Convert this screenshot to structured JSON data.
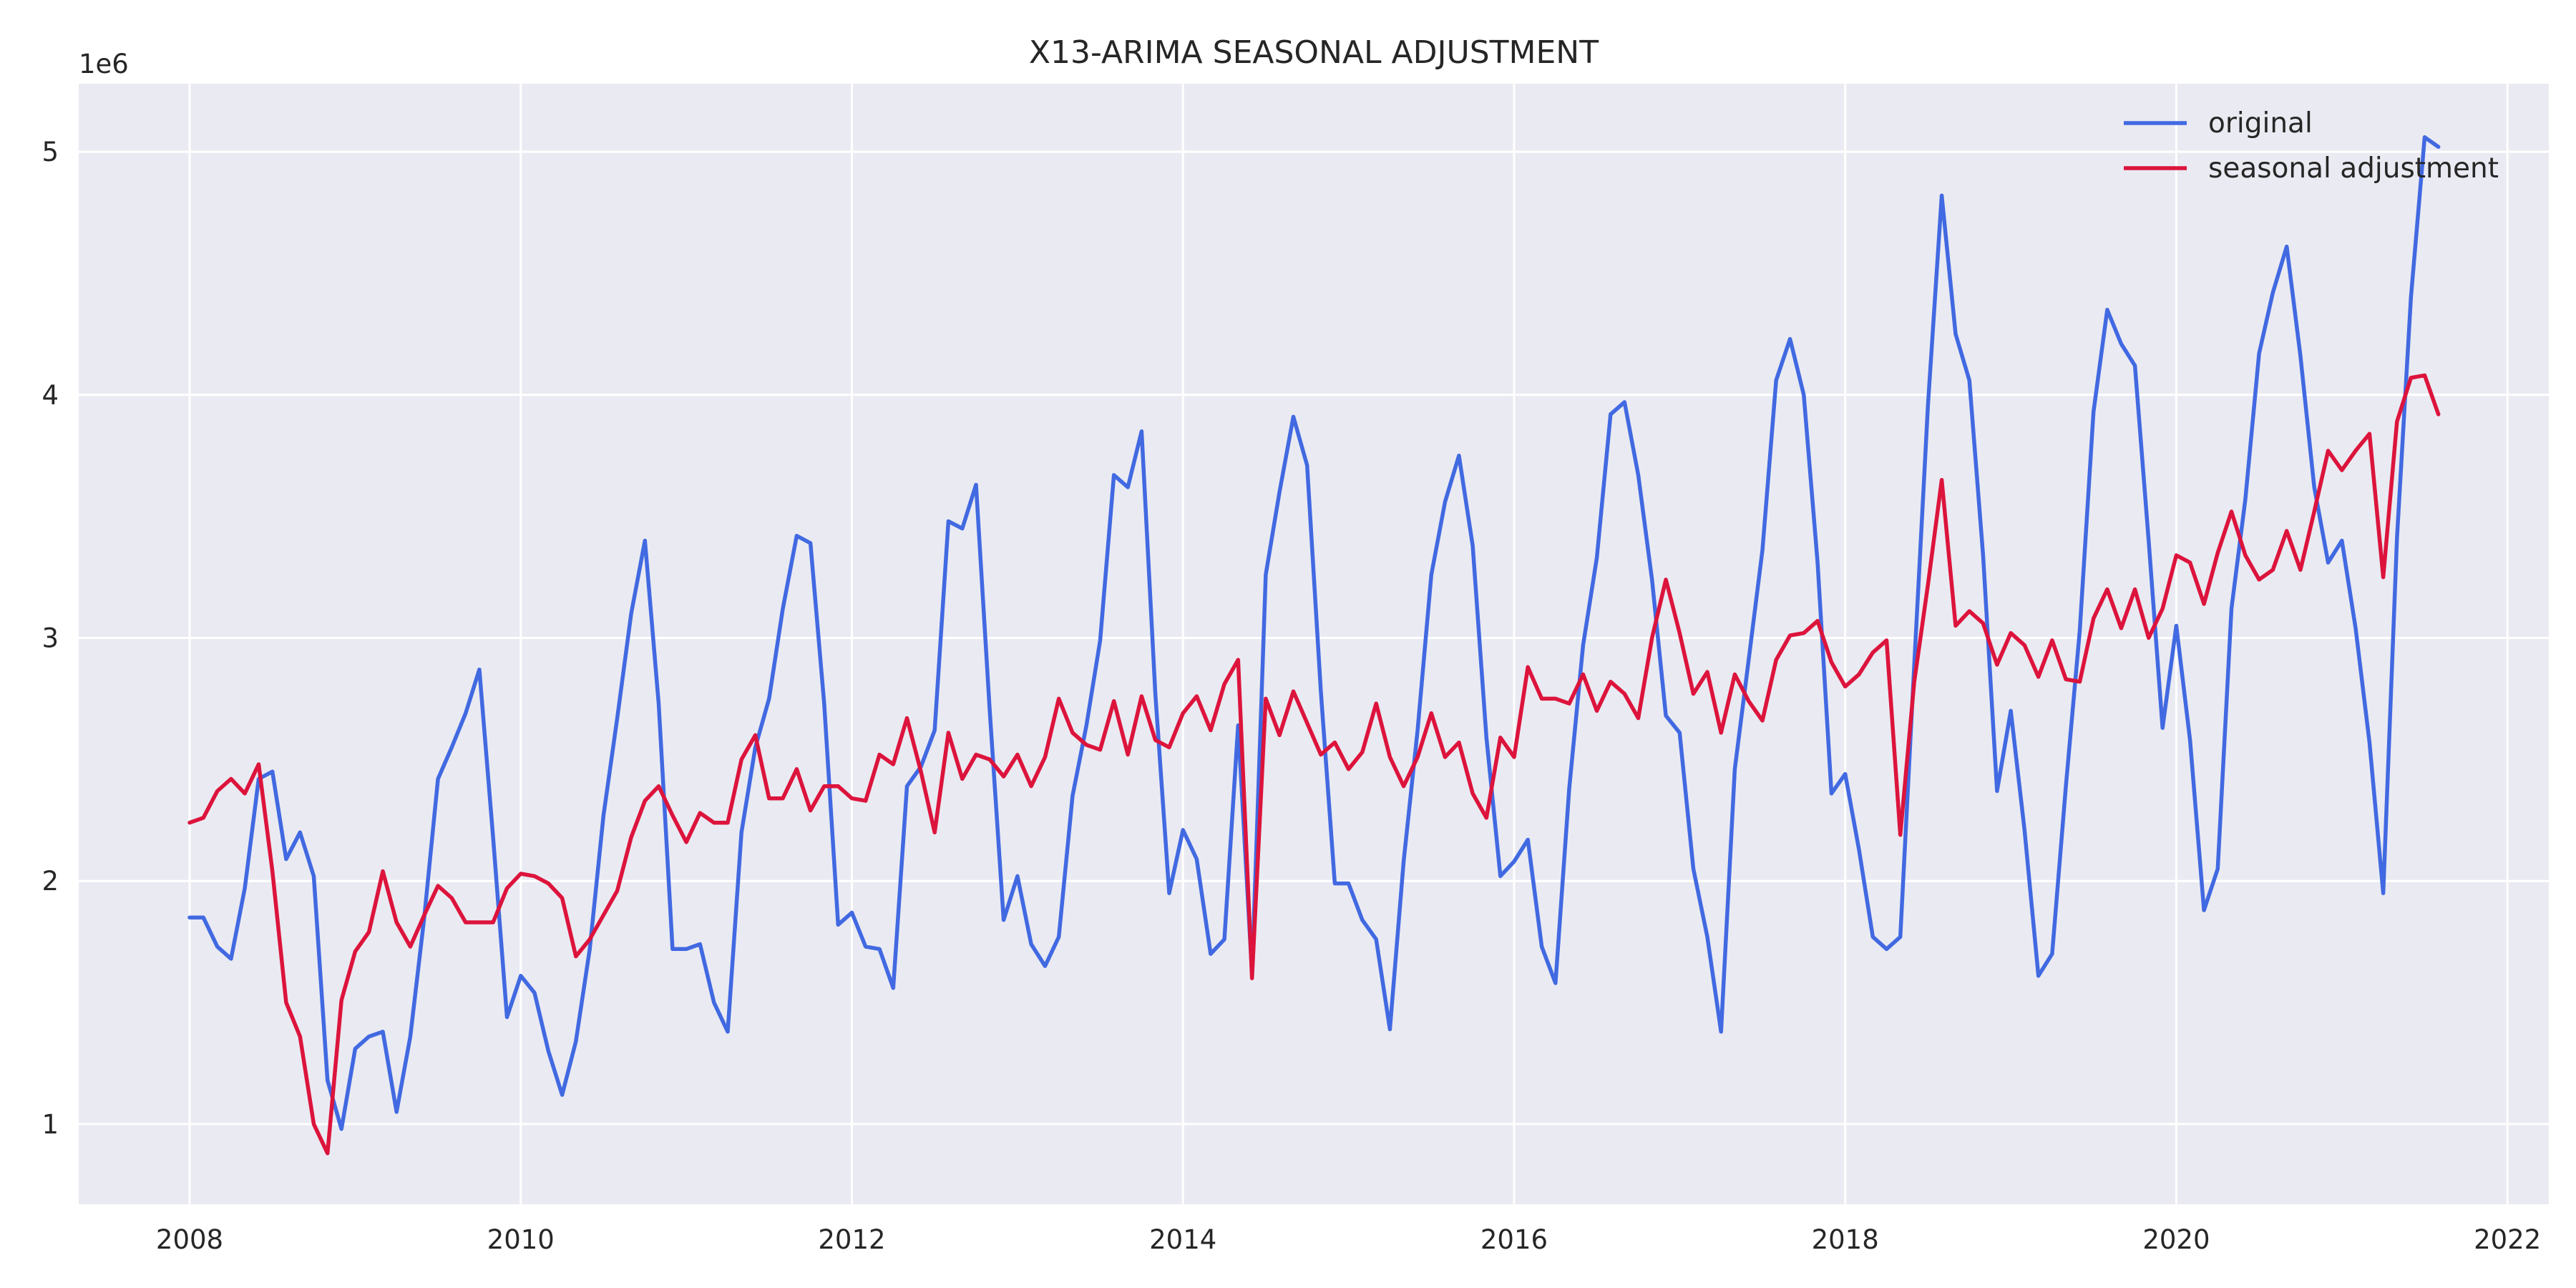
{
  "chart_data": {
    "type": "line",
    "title": "X13-ARIMA SEASONAL ADJUSTMENT",
    "xlabel": "",
    "ylabel": "",
    "y_offset_label": "1e6",
    "xlim": [
      2007.33,
      2022.25
    ],
    "ylim": [
      0.67,
      5.28
    ],
    "x_ticks": [
      2008,
      2010,
      2012,
      2014,
      2016,
      2018,
      2020,
      2022
    ],
    "x_tick_labels": [
      "2008",
      "2010",
      "2012",
      "2014",
      "2016",
      "2018",
      "2020",
      "2022"
    ],
    "y_ticks": [
      1,
      2,
      3,
      4,
      5
    ],
    "y_tick_labels": [
      "1",
      "2",
      "3",
      "4",
      "5"
    ],
    "grid": true,
    "legend_position": "top-right",
    "x": [
      2008.0,
      2008.083,
      2008.167,
      2008.25,
      2008.333,
      2008.417,
      2008.5,
      2008.583,
      2008.667,
      2008.75,
      2008.833,
      2008.917,
      2009.0,
      2009.083,
      2009.167,
      2009.25,
      2009.333,
      2009.417,
      2009.5,
      2009.583,
      2009.667,
      2009.75,
      2009.833,
      2009.917,
      2010.0,
      2010.083,
      2010.167,
      2010.25,
      2010.333,
      2010.417,
      2010.5,
      2010.583,
      2010.667,
      2010.75,
      2010.833,
      2010.917,
      2011.0,
      2011.083,
      2011.167,
      2011.25,
      2011.333,
      2011.417,
      2011.5,
      2011.583,
      2011.667,
      2011.75,
      2011.833,
      2011.917,
      2012.0,
      2012.083,
      2012.167,
      2012.25,
      2012.333,
      2012.417,
      2012.5,
      2012.583,
      2012.667,
      2012.75,
      2012.833,
      2012.917,
      2013.0,
      2013.083,
      2013.167,
      2013.25,
      2013.333,
      2013.417,
      2013.5,
      2013.583,
      2013.667,
      2013.75,
      2013.833,
      2013.917,
      2014.0,
      2014.083,
      2014.167,
      2014.25,
      2014.333,
      2014.417,
      2014.5,
      2014.583,
      2014.667,
      2014.75,
      2014.833,
      2014.917,
      2015.0,
      2015.083,
      2015.167,
      2015.25,
      2015.333,
      2015.417,
      2015.5,
      2015.583,
      2015.667,
      2015.75,
      2015.833,
      2015.917,
      2016.0,
      2016.083,
      2016.167,
      2016.25,
      2016.333,
      2016.417,
      2016.5,
      2016.583,
      2016.667,
      2016.75,
      2016.833,
      2016.917,
      2017.0,
      2017.083,
      2017.167,
      2017.25,
      2017.333,
      2017.417,
      2017.5,
      2017.583,
      2017.667,
      2017.75,
      2017.833,
      2017.917,
      2018.0,
      2018.083,
      2018.167,
      2018.25,
      2018.333,
      2018.417,
      2018.5,
      2018.583,
      2018.667,
      2018.75,
      2018.833,
      2018.917,
      2019.0,
      2019.083,
      2019.167,
      2019.25,
      2019.333,
      2019.417,
      2019.5,
      2019.583,
      2019.667,
      2019.75,
      2019.833,
      2019.917,
      2020.0,
      2020.083,
      2020.167,
      2020.25,
      2020.333,
      2020.417,
      2020.5,
      2020.583,
      2020.667,
      2020.75,
      2020.833,
      2020.917,
      2021.0,
      2021.083,
      2021.167,
      2021.25,
      2021.333,
      2021.417,
      2021.5,
      2021.583
    ],
    "series": [
      {
        "name": "original",
        "color": "#4169E1",
        "values": [
          1.85,
          1.85,
          1.73,
          1.68,
          1.97,
          2.42,
          2.45,
          2.09,
          2.2,
          2.02,
          1.18,
          0.98,
          1.31,
          1.36,
          1.38,
          1.05,
          1.36,
          1.85,
          2.42,
          2.55,
          2.69,
          2.87,
          2.18,
          1.44,
          1.61,
          1.54,
          1.3,
          1.12,
          1.34,
          1.72,
          2.27,
          2.67,
          3.1,
          3.4,
          2.73,
          1.72,
          1.72,
          1.74,
          1.5,
          1.38,
          2.2,
          2.55,
          2.75,
          3.12,
          3.42,
          3.39,
          2.73,
          1.82,
          1.87,
          1.73,
          1.72,
          1.56,
          2.39,
          2.47,
          2.62,
          3.48,
          3.45,
          3.63,
          2.7,
          1.84,
          2.02,
          1.74,
          1.65,
          1.77,
          2.35,
          2.64,
          2.99,
          3.67,
          3.62,
          3.85,
          2.77,
          1.95,
          2.21,
          2.09,
          1.7,
          1.76,
          2.64,
          1.62,
          3.26,
          3.6,
          3.91,
          3.71,
          2.78,
          1.99,
          1.99,
          1.84,
          1.76,
          1.39,
          2.08,
          2.62,
          3.26,
          3.56,
          3.75,
          3.38,
          2.59,
          2.02,
          2.08,
          2.17,
          1.73,
          1.58,
          2.38,
          2.97,
          3.33,
          3.92,
          3.97,
          3.67,
          3.24,
          2.68,
          2.61,
          2.05,
          1.77,
          1.38,
          2.46,
          2.91,
          3.36,
          4.06,
          4.23,
          4.0,
          3.31,
          2.36,
          2.44,
          2.13,
          1.77,
          1.72,
          1.77,
          2.89,
          3.96,
          4.82,
          4.25,
          4.06,
          3.34,
          2.37,
          2.7,
          2.21,
          1.61,
          1.7,
          2.39,
          3.03,
          3.93,
          4.35,
          4.21,
          4.12,
          3.4,
          2.63,
          3.05,
          2.58,
          1.88,
          2.05,
          3.12,
          3.57,
          4.17,
          4.42,
          4.61,
          4.16,
          3.62,
          3.31,
          3.4,
          3.04,
          2.57,
          1.95,
          3.41,
          4.4,
          5.06,
          5.02
        ]
      },
      {
        "name": "seasonal adjustment",
        "color": "#DC143C",
        "values": [
          2.24,
          2.26,
          2.37,
          2.42,
          2.36,
          2.48,
          2.04,
          1.5,
          1.36,
          1.0,
          0.88,
          1.51,
          1.71,
          1.79,
          2.04,
          1.83,
          1.73,
          1.86,
          1.98,
          1.93,
          1.83,
          1.83,
          1.83,
          1.97,
          2.03,
          2.02,
          1.99,
          1.93,
          1.69,
          1.76,
          1.86,
          1.96,
          2.18,
          2.33,
          2.39,
          2.27,
          2.16,
          2.28,
          2.24,
          2.24,
          2.5,
          2.6,
          2.34,
          2.34,
          2.46,
          2.29,
          2.39,
          2.39,
          2.34,
          2.33,
          2.52,
          2.48,
          2.67,
          2.45,
          2.2,
          2.61,
          2.42,
          2.52,
          2.5,
          2.43,
          2.52,
          2.39,
          2.51,
          2.75,
          2.61,
          2.56,
          2.54,
          2.74,
          2.52,
          2.76,
          2.58,
          2.55,
          2.69,
          2.76,
          2.62,
          2.81,
          2.91,
          1.6,
          2.75,
          2.6,
          2.78,
          2.65,
          2.52,
          2.57,
          2.46,
          2.53,
          2.73,
          2.51,
          2.39,
          2.51,
          2.69,
          2.51,
          2.57,
          2.36,
          2.26,
          2.59,
          2.51,
          2.88,
          2.75,
          2.75,
          2.73,
          2.85,
          2.7,
          2.82,
          2.77,
          2.67,
          3.0,
          3.24,
          3.02,
          2.77,
          2.86,
          2.61,
          2.85,
          2.74,
          2.66,
          2.91,
          3.01,
          3.02,
          3.07,
          2.9,
          2.8,
          2.85,
          2.94,
          2.99,
          2.19,
          2.82,
          3.22,
          3.65,
          3.05,
          3.11,
          3.06,
          2.89,
          3.02,
          2.97,
          2.84,
          2.99,
          2.83,
          2.82,
          3.08,
          3.2,
          3.04,
          3.2,
          3.0,
          3.12,
          3.34,
          3.31,
          3.14,
          3.35,
          3.52,
          3.34,
          3.24,
          3.28,
          3.44,
          3.28,
          3.52,
          3.77,
          3.69,
          3.77,
          3.84,
          3.25,
          3.89,
          4.07,
          4.08,
          3.92
        ]
      }
    ]
  }
}
